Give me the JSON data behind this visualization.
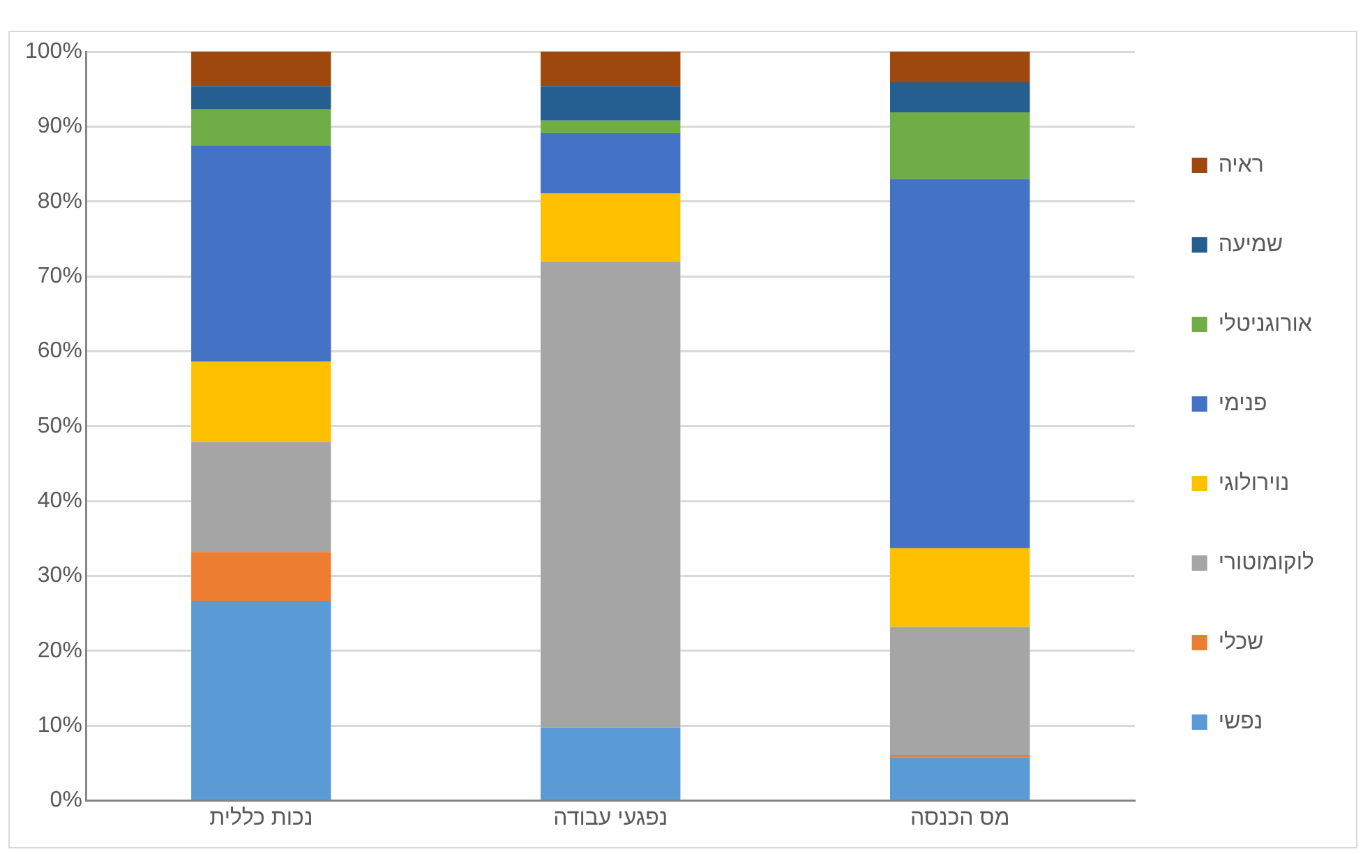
{
  "chart_data": {
    "type": "bar",
    "stacked": true,
    "categories": [
      "נכות כללית",
      "נפגעי עבודה",
      "מס הכנסה"
    ],
    "series": [
      {
        "name": "נפשי",
        "color": "#5b9bd5",
        "values": [
          26.7,
          9.8,
          5.8
        ]
      },
      {
        "name": "שכלי",
        "color": "#ed7d31",
        "values": [
          6.5,
          0,
          0.3
        ]
      },
      {
        "name": "לוקומוטורי",
        "color": "#a5a5a5",
        "values": [
          14.7,
          62.2,
          17.1
        ]
      },
      {
        "name": "נוירולוגי",
        "color": "#ffc000",
        "values": [
          10.7,
          9.1,
          10.5
        ]
      },
      {
        "name": "פנימי",
        "color": "#4472c4",
        "values": [
          28.9,
          8.0,
          49.3
        ]
      },
      {
        "name": "אורוגניטלי",
        "color": "#70ad47",
        "values": [
          4.8,
          1.7,
          8.9
        ]
      },
      {
        "name": "שמיעה",
        "color": "#255e91",
        "values": [
          3.1,
          4.6,
          4.0
        ]
      },
      {
        "name": "ראיה",
        "color": "#9e480e",
        "values": [
          4.6,
          4.6,
          4.1
        ]
      }
    ],
    "ylim": [
      0,
      100
    ],
    "yticks": [
      {
        "value": 0,
        "label": "0%"
      },
      {
        "value": 10,
        "label": "10%"
      },
      {
        "value": 20,
        "label": "20%"
      },
      {
        "value": 30,
        "label": "30%"
      },
      {
        "value": 40,
        "label": "40%"
      },
      {
        "value": 50,
        "label": "50%"
      },
      {
        "value": 60,
        "label": "60%"
      },
      {
        "value": 70,
        "label": "70%"
      },
      {
        "value": 80,
        "label": "80%"
      },
      {
        "value": 90,
        "label": "90%"
      },
      {
        "value": 100,
        "label": "100%"
      }
    ],
    "grid": "y",
    "legend": "right"
  }
}
